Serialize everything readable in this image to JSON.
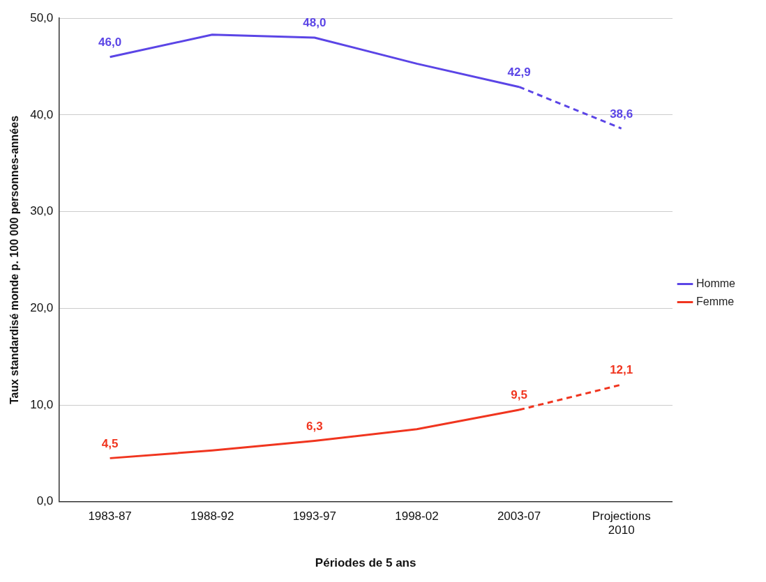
{
  "chart_data": {
    "type": "line",
    "xlabel": "Périodes de 5 ans",
    "ylabel": "Taux standardisé monde p. 100 000 personnes-années",
    "categories": [
      "1983-87",
      "1988-92",
      "1993-97",
      "1998-02",
      "2003-07",
      "Projections 2010"
    ],
    "series": [
      {
        "name": "Homme",
        "color": "#5b45e6",
        "values": [
          46.0,
          48.3,
          48.0,
          45.3,
          42.9,
          null
        ],
        "value_labels": [
          "46,0",
          null,
          "48,0",
          null,
          "42,9",
          null
        ]
      },
      {
        "name": "Femme",
        "color": "#f0351f",
        "values": [
          4.5,
          5.3,
          6.3,
          7.5,
          9.5,
          null
        ],
        "value_labels": [
          "4,5",
          null,
          "6,3",
          null,
          "9,5",
          null
        ]
      },
      {
        "color": "#5b45e6",
        "line_style": "dashed",
        "values": [
          null,
          null,
          null,
          null,
          42.9,
          38.6
        ],
        "value_labels": [
          null,
          null,
          null,
          null,
          null,
          "38,6"
        ]
      },
      {
        "color": "#f0351f",
        "line_style": "dashed",
        "values": [
          null,
          null,
          null,
          null,
          9.5,
          12.1
        ],
        "value_labels": [
          null,
          null,
          null,
          null,
          null,
          "12,1"
        ]
      }
    ],
    "ylim": [
      0,
      50
    ],
    "yticks": [
      {
        "value": 0,
        "label": "0,0"
      },
      {
        "value": 10,
        "label": "10,0"
      },
      {
        "value": 20,
        "label": "20,0"
      },
      {
        "value": 30,
        "label": "30,0"
      },
      {
        "value": 40,
        "label": "40,0"
      },
      {
        "value": 50,
        "label": "50,0"
      }
    ],
    "grid": "y",
    "legend": "right",
    "marker": "none",
    "line_style": "solid"
  }
}
